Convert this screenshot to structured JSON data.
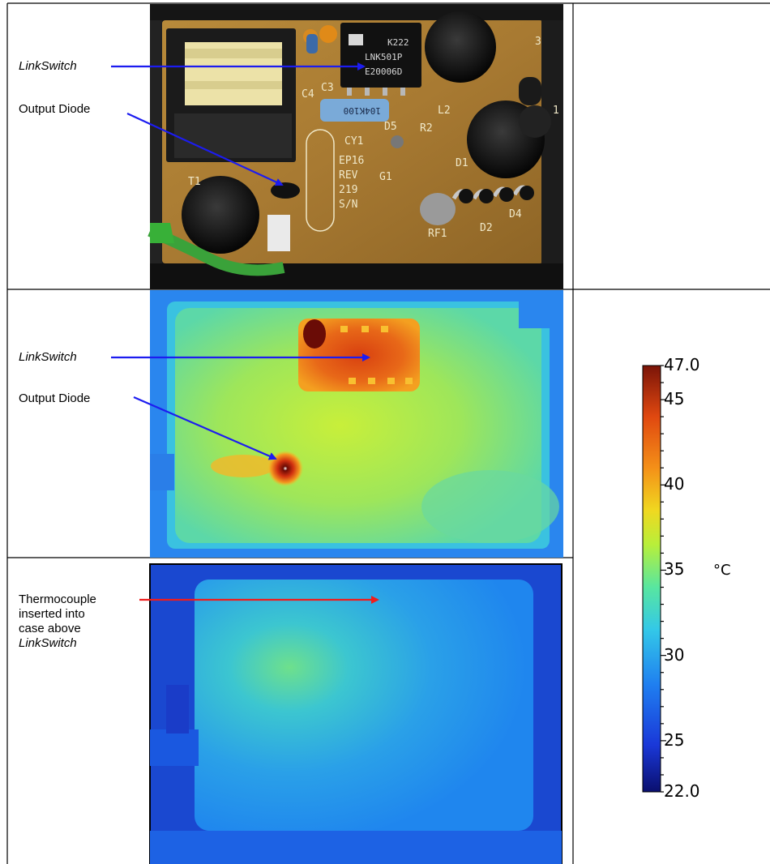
{
  "panels": {
    "photo": {
      "label_linkswitch": "LinkSwitch",
      "label_output_diode": "Output Diode",
      "pcb_markings": {
        "chip_line1": "K222",
        "chip_line2": "LNK501P",
        "chip_line3": "E20006D",
        "capacitor": "104K100",
        "board_line1": "EP16",
        "board_line2": "REV",
        "board_line3": "219",
        "board_line4": "S/N",
        "ref_cy1": "CY1",
        "ref_g1": "G1",
        "ref_d1": "D1",
        "ref_d2": "D2",
        "ref_d4": "D4",
        "ref_d5": "D5",
        "ref_r2": "R2",
        "ref_l2": "L2",
        "ref_rf1": "RF1",
        "ref_t1": "T1",
        "ref_c3": "C3",
        "ref_c4": "C4",
        "ref_1": "1",
        "ref_3": "3"
      }
    },
    "thermal_board": {
      "label_linkswitch": "LinkSwitch",
      "label_output_diode": "Output Diode"
    },
    "thermal_case": {
      "label_line1": "Thermocouple",
      "label_line2": "inserted into",
      "label_line3": "case above",
      "label_line4": "LinkSwitch"
    }
  },
  "colorbar": {
    "unit": "°C",
    "tick_max": "47.0",
    "tick_45": "45",
    "tick_40": "40",
    "tick_35": "35",
    "tick_30": "30",
    "tick_25": "25",
    "tick_min": "22.0",
    "min_value": 22.0,
    "max_value": 47.0,
    "gradient": [
      "#0a0f6e",
      "#1a38d8",
      "#1f7ef0",
      "#33c8e8",
      "#58e6a0",
      "#b8ef3a",
      "#f0d820",
      "#f49018",
      "#e04810",
      "#7a1408"
    ]
  },
  "colors": {
    "arrow_blue": "#1c1cf0",
    "arrow_red": "#f01c1c",
    "grid_line": "#000000"
  }
}
